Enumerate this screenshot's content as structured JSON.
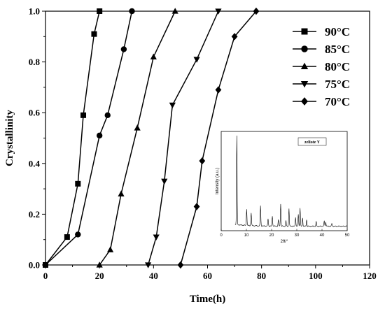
{
  "chart_data": {
    "type": "line",
    "xlabel": "Time(h)",
    "ylabel": "Crystallinity",
    "xlim": [
      0,
      120
    ],
    "ylim": [
      0,
      1.0
    ],
    "xticks": [
      "0",
      "20",
      "40",
      "60",
      "80",
      "100",
      "120"
    ],
    "yticks": [
      "0.0",
      "0.2",
      "0.4",
      "0.6",
      "0.8",
      "1.0"
    ],
    "legend_position": "top-right",
    "series": [
      {
        "name": "90°C",
        "marker": "square",
        "x": [
          0,
          8,
          12,
          14,
          18,
          20
        ],
        "y": [
          0,
          0.11,
          0.32,
          0.59,
          0.91,
          1.0
        ]
      },
      {
        "name": "85°C",
        "marker": "circle",
        "x": [
          0,
          12,
          20,
          23,
          29,
          32
        ],
        "y": [
          0,
          0.12,
          0.51,
          0.59,
          0.85,
          1.0
        ]
      },
      {
        "name": "80°C",
        "marker": "triangle-up",
        "x": [
          20,
          24,
          28,
          34,
          40,
          48
        ],
        "y": [
          0,
          0.06,
          0.28,
          0.54,
          0.82,
          1.0
        ]
      },
      {
        "name": "75°C",
        "marker": "triangle-down",
        "x": [
          38,
          41,
          44,
          47,
          56,
          64
        ],
        "y": [
          0,
          0.11,
          0.33,
          0.63,
          0.81,
          1.0
        ]
      },
      {
        "name": "70°C",
        "marker": "diamond",
        "x": [
          50,
          56,
          58,
          64,
          70,
          78
        ],
        "y": [
          0,
          0.23,
          0.41,
          0.69,
          0.9,
          1.0
        ]
      }
    ],
    "inset": {
      "title": "zeliote Y",
      "xlabel": "2θ/°",
      "ylabel": "Intensity (a.u.)",
      "xlim": [
        0,
        50
      ],
      "xticks": [
        "0",
        "10",
        "20",
        "30",
        "40",
        "50"
      ],
      "peaks": [
        {
          "x": 6.2,
          "h": 1.0
        },
        {
          "x": 10.1,
          "h": 0.18
        },
        {
          "x": 11.9,
          "h": 0.14
        },
        {
          "x": 15.6,
          "h": 0.22
        },
        {
          "x": 18.6,
          "h": 0.08
        },
        {
          "x": 20.3,
          "h": 0.11
        },
        {
          "x": 22.7,
          "h": 0.07
        },
        {
          "x": 23.6,
          "h": 0.24
        },
        {
          "x": 25.7,
          "h": 0.06
        },
        {
          "x": 26.9,
          "h": 0.19
        },
        {
          "x": 29.5,
          "h": 0.1
        },
        {
          "x": 30.6,
          "h": 0.13
        },
        {
          "x": 31.3,
          "h": 0.2
        },
        {
          "x": 32.3,
          "h": 0.09
        },
        {
          "x": 33.9,
          "h": 0.07
        },
        {
          "x": 37.7,
          "h": 0.05
        },
        {
          "x": 40.9,
          "h": 0.06
        },
        {
          "x": 41.5,
          "h": 0.05
        },
        {
          "x": 43.9,
          "h": 0.03
        }
      ]
    }
  }
}
